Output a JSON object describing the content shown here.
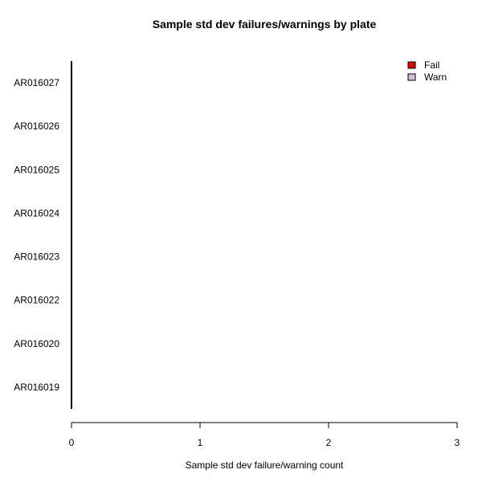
{
  "chart_data": {
    "type": "bar",
    "orientation": "horizontal",
    "stacked": true,
    "title": "Sample std dev failures/warnings by plate",
    "xlabel": "Sample std dev failure/warning count",
    "ylabel": "",
    "xlim": [
      0,
      3
    ],
    "xticks": [
      "0",
      "1",
      "2",
      "3"
    ],
    "categories": [
      "AR016019",
      "AR016020",
      "AR016022",
      "AR016023",
      "AR016024",
      "AR016025",
      "AR016026",
      "AR016027"
    ],
    "series": [
      {
        "name": "Fail",
        "color": "#dd0000",
        "values": [
          0,
          0,
          0,
          0,
          0,
          0,
          0,
          0
        ]
      },
      {
        "name": "Warn",
        "color": "#ccc0d6",
        "values": [
          0,
          0,
          0,
          0,
          0,
          0,
          0,
          0
        ]
      }
    ],
    "legend_position": "top-right",
    "grid": false
  }
}
